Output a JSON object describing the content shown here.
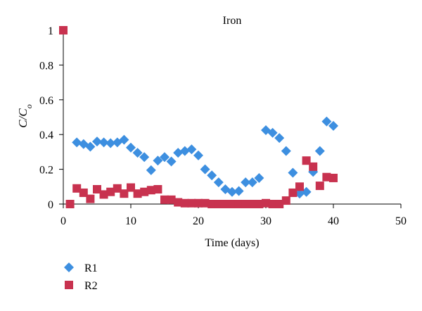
{
  "chart_data": {
    "type": "scatter",
    "title": "Iron",
    "xlabel": "Time (days)",
    "ylabel": "C/C",
    "ylabel_subscript": "o",
    "xlim": [
      0,
      50
    ],
    "ylim": [
      0,
      1
    ],
    "xticks": [
      "0",
      "10",
      "20",
      "30",
      "40",
      "50"
    ],
    "yticks": [
      "0",
      "0.2",
      "0.4",
      "0.6",
      "0.8",
      "1"
    ],
    "grid": false,
    "legend_position": "bottom-left",
    "series": [
      {
        "name": "R1",
        "marker": "diamond",
        "color": "#3d8fe0",
        "points": [
          [
            2,
            0.355
          ],
          [
            3,
            0.345
          ],
          [
            4,
            0.33
          ],
          [
            5,
            0.36
          ],
          [
            6,
            0.355
          ],
          [
            7,
            0.35
          ],
          [
            8,
            0.355
          ],
          [
            9,
            0.37
          ],
          [
            10,
            0.325
          ],
          [
            11,
            0.295
          ],
          [
            12,
            0.27
          ],
          [
            13,
            0.195
          ],
          [
            14,
            0.25
          ],
          [
            15,
            0.27
          ],
          [
            16,
            0.245
          ],
          [
            17,
            0.295
          ],
          [
            18,
            0.305
          ],
          [
            19,
            0.315
          ],
          [
            20,
            0.28
          ],
          [
            21,
            0.2
          ],
          [
            22,
            0.165
          ],
          [
            23,
            0.125
          ],
          [
            24,
            0.085
          ],
          [
            25,
            0.07
          ],
          [
            26,
            0.075
          ],
          [
            27,
            0.125
          ],
          [
            28,
            0.125
          ],
          [
            29,
            0.15
          ],
          [
            30,
            0.425
          ],
          [
            31,
            0.41
          ],
          [
            32,
            0.38
          ],
          [
            33,
            0.305
          ],
          [
            34,
            0.18
          ],
          [
            35,
            0.06
          ],
          [
            36,
            0.07
          ],
          [
            37,
            0.185
          ],
          [
            38,
            0.305
          ],
          [
            39,
            0.475
          ],
          [
            40,
            0.45
          ]
        ]
      },
      {
        "name": "R2",
        "marker": "square",
        "color": "#c8324f",
        "points": [
          [
            0,
            1.0
          ],
          [
            1,
            0.0
          ],
          [
            2,
            0.09
          ],
          [
            3,
            0.065
          ],
          [
            4,
            0.03
          ],
          [
            5,
            0.085
          ],
          [
            6,
            0.055
          ],
          [
            7,
            0.07
          ],
          [
            8,
            0.09
          ],
          [
            9,
            0.06
          ],
          [
            10,
            0.095
          ],
          [
            11,
            0.06
          ],
          [
            12,
            0.07
          ],
          [
            13,
            0.08
          ],
          [
            14,
            0.085
          ],
          [
            15,
            0.025
          ],
          [
            16,
            0.025
          ],
          [
            17,
            0.01
          ],
          [
            18,
            0.005
          ],
          [
            19,
            0.005
          ],
          [
            20,
            0.005
          ],
          [
            21,
            0.005
          ],
          [
            22,
            0.0
          ],
          [
            23,
            0.0
          ],
          [
            24,
            0.0
          ],
          [
            25,
            0.0
          ],
          [
            26,
            0.0
          ],
          [
            27,
            0.0
          ],
          [
            28,
            0.0
          ],
          [
            29,
            0.0
          ],
          [
            30,
            0.005
          ],
          [
            31,
            0.0
          ],
          [
            32,
            0.0
          ],
          [
            33,
            0.02
          ],
          [
            34,
            0.065
          ],
          [
            35,
            0.1
          ],
          [
            36,
            0.25
          ],
          [
            37,
            0.215
          ],
          [
            38,
            0.105
          ],
          [
            39,
            0.155
          ],
          [
            40,
            0.15
          ]
        ]
      }
    ]
  }
}
